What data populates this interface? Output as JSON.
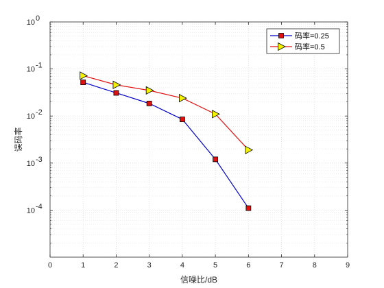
{
  "chart_data": {
    "type": "line",
    "title": "",
    "xlabel": "信噪比/dB",
    "ylabel": "误码率",
    "xlim": [
      0,
      9
    ],
    "ylim": [
      1e-05,
      1
    ],
    "yscale": "log",
    "grid": true,
    "legend_position": "top-right",
    "x_ticks": [
      "0",
      "1",
      "2",
      "3",
      "4",
      "5",
      "6",
      "7",
      "8",
      "9"
    ],
    "y_ticks": [
      {
        "base": "10",
        "exp": "0"
      },
      {
        "base": "10",
        "exp": "-1"
      },
      {
        "base": "10",
        "exp": "-2"
      },
      {
        "base": "10",
        "exp": "-3"
      },
      {
        "base": "10",
        "exp": "-4"
      }
    ],
    "series": [
      {
        "name": "码率=0.25",
        "color": "#0000c8",
        "marker": "square",
        "marker_fill": "#e01010",
        "x": [
          1,
          2,
          3,
          4,
          5,
          6
        ],
        "y": [
          0.052,
          0.031,
          0.0185,
          0.0085,
          0.0012,
          0.00011
        ]
      },
      {
        "name": "码率=0.5",
        "color": "#e01010",
        "marker": "triangle-right",
        "marker_fill": "#f2f200",
        "x": [
          1,
          2,
          3,
          4,
          5,
          6
        ],
        "y": [
          0.072,
          0.046,
          0.035,
          0.024,
          0.011,
          0.0019
        ]
      }
    ]
  }
}
